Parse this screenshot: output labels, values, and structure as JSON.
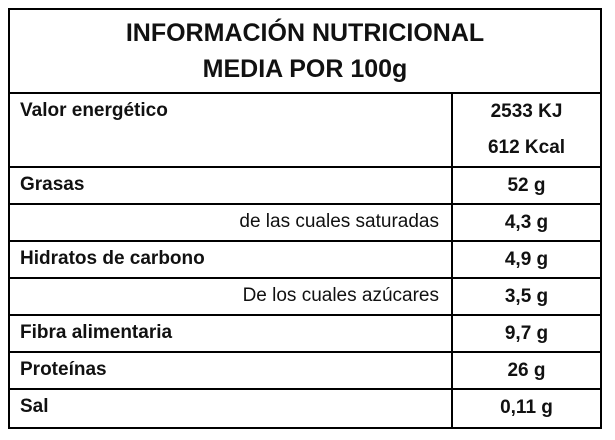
{
  "header": {
    "title": [
      "INFORMACIÓN NUTRICIONAL",
      "MEDIA POR 100g"
    ]
  },
  "table": {
    "rows": [
      {
        "label": "Valor energético",
        "value": [
          "2533 KJ",
          "612 Kcal"
        ]
      },
      {
        "label": "Grasas",
        "value": "52 g",
        "sub_rows": [
          {
            "label": "de las cuales saturadas",
            "value": "4,3 g"
          }
        ]
      },
      {
        "label": "Hidratos de carbono",
        "value": "4,9 g",
        "sub_rows": [
          {
            "label": "De los cuales azúcares",
            "value": "3,5 g"
          }
        ]
      },
      {
        "label": "Fibra alimentaria",
        "value": "9,7 g"
      },
      {
        "label": "Proteínas",
        "value": "26 g"
      },
      {
        "label": "Sal",
        "value": "0,11 g"
      }
    ]
  }
}
